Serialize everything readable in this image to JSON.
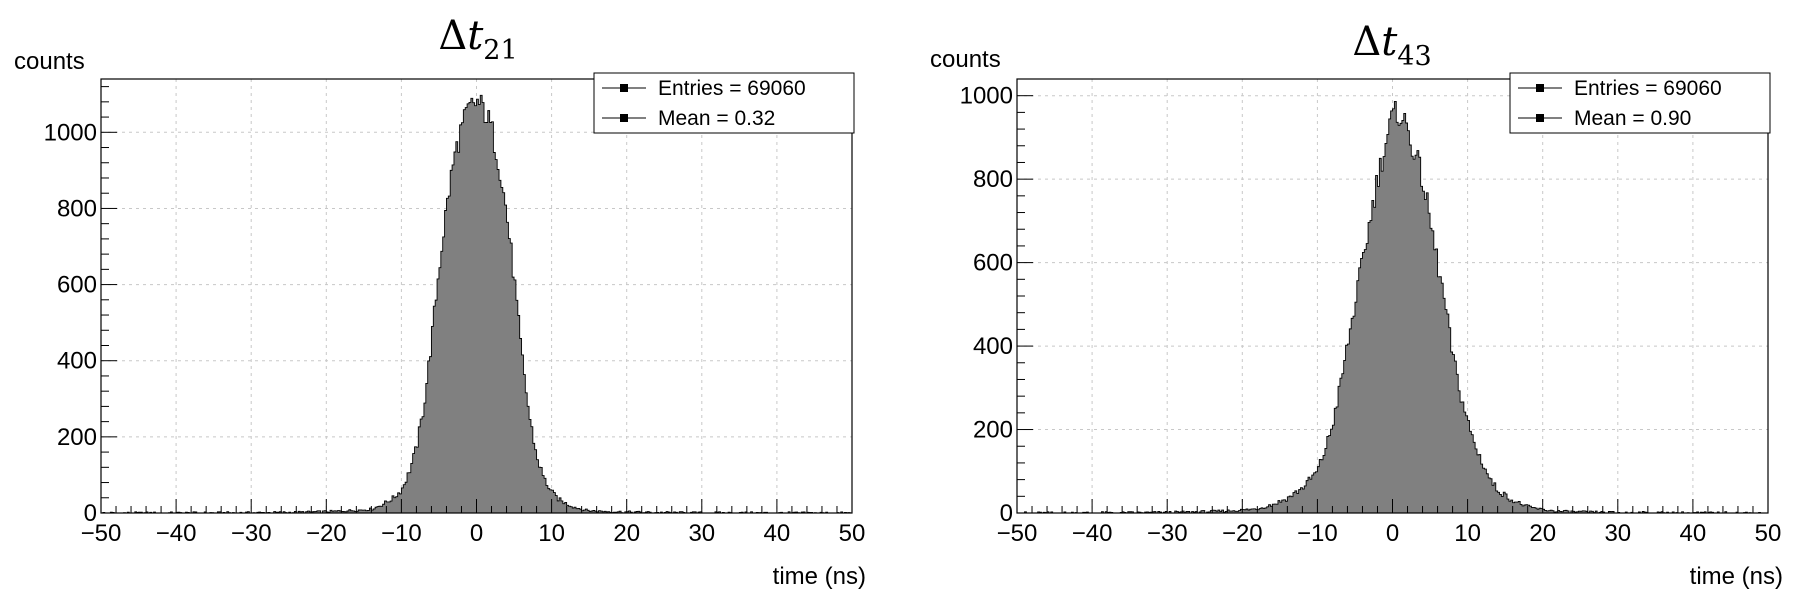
{
  "chart_data": [
    {
      "type": "bar",
      "title_symbol": "Δ",
      "title_var": "t",
      "title_sub": "21",
      "xlabel": "time (ns)",
      "ylabel": "counts",
      "xlim": [
        -50,
        50
      ],
      "ylim": [
        0,
        1140
      ],
      "xticks": [
        -50,
        -40,
        -30,
        -20,
        -10,
        0,
        10,
        20,
        30,
        40,
        50
      ],
      "yticks": [
        0,
        200,
        400,
        600,
        800,
        1000
      ],
      "grid": true,
      "legend_position": "top-right",
      "legend": [
        "Entries = 69060",
        "Mean = 0.32"
      ],
      "bin_width": 0.25,
      "fill_color": "#808080",
      "line_color": "#000000",
      "x": [
        -14,
        -13,
        -12,
        -11,
        -10,
        -9,
        -8,
        -7,
        -6,
        -5,
        -4,
        -3,
        -2,
        -1,
        0,
        1,
        2,
        3,
        4,
        5,
        6,
        7,
        8,
        9,
        10,
        11,
        12,
        13,
        14,
        15
      ],
      "values": [
        10,
        18,
        28,
        40,
        60,
        105,
        170,
        280,
        450,
        640,
        800,
        930,
        1010,
        1060,
        1080,
        1060,
        1010,
        920,
        790,
        620,
        420,
        260,
        150,
        90,
        55,
        35,
        24,
        16,
        10,
        6
      ]
    },
    {
      "type": "bar",
      "title_symbol": "Δ",
      "title_var": "t",
      "title_sub": "43",
      "xlabel": "time (ns)",
      "ylabel": "counts",
      "xlim": [
        -50,
        50
      ],
      "ylim": [
        0,
        1040
      ],
      "xticks": [
        -50,
        -40,
        -30,
        -20,
        -10,
        0,
        10,
        20,
        30,
        40,
        50
      ],
      "yticks": [
        0,
        200,
        400,
        600,
        800,
        1000
      ],
      "grid": true,
      "legend_position": "top-right",
      "legend": [
        "Entries = 69060",
        "Mean = 0.90"
      ],
      "bin_width": 0.25,
      "fill_color": "#808080",
      "line_color": "#000000",
      "x": [
        -18,
        -16,
        -14,
        -12,
        -10,
        -9,
        -8,
        -7,
        -6,
        -5,
        -4,
        -3,
        -2,
        -1,
        0,
        1,
        2,
        3,
        4,
        5,
        6,
        7,
        8,
        9,
        10,
        11,
        12,
        13,
        14,
        16,
        18,
        20,
        22
      ],
      "values": [
        10,
        20,
        35,
        60,
        100,
        150,
        210,
        300,
        400,
        500,
        600,
        700,
        800,
        880,
        950,
        960,
        920,
        860,
        800,
        700,
        600,
        500,
        380,
        290,
        220,
        160,
        120,
        80,
        55,
        30,
        15,
        8,
        4
      ]
    }
  ]
}
